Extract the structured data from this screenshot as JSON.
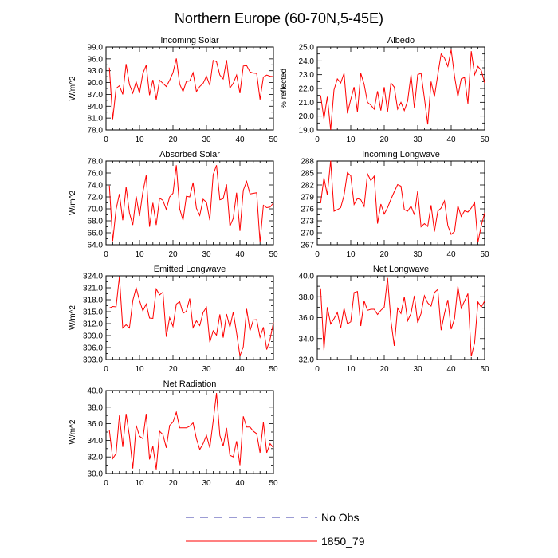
{
  "figure_title": "Northern Europe (60-70N,5-45E)",
  "colors": {
    "model": "#ff0000",
    "obs": "#3a3aa8",
    "axis": "#000000"
  },
  "legend": [
    {
      "label": "No Obs",
      "style": "dashed",
      "color": "#3a3aa8"
    },
    {
      "label": "1850_79",
      "style": "solid",
      "color": "#ff0000"
    }
  ],
  "chart_data": [
    {
      "type": "line",
      "title": "Incoming Solar",
      "ylabel": "W/m^2",
      "xlim": [
        0,
        50
      ],
      "ylim": [
        78,
        99
      ],
      "xticks": [
        0,
        10,
        20,
        30,
        40,
        50
      ],
      "yticks": [
        78,
        81,
        84,
        87,
        90,
        93,
        96,
        99
      ],
      "ytick_labels": [
        "78.0",
        "81.0",
        "84.0",
        "87.0",
        "90.0",
        "93.0",
        "96.0",
        "99.0"
      ],
      "series": [
        {
          "name": "1850_79",
          "x_start": 1,
          "values": [
            93.8,
            80.7,
            88.5,
            89.2,
            87.0,
            94.7,
            89.5,
            87.3,
            90.2,
            87.3,
            92.3,
            94.4,
            86.8,
            90.7,
            85.7,
            90.6,
            89.8,
            89.0,
            90.6,
            92.5,
            96.1,
            89.6,
            87.7,
            90.3,
            90.4,
            92.5,
            87.7,
            89.0,
            89.8,
            91.6,
            89.3,
            95.6,
            95.3,
            91.9,
            90.9,
            95.7,
            88.6,
            89.8,
            91.9,
            87.3,
            94.2,
            94.3,
            92.7,
            92.4,
            92.3,
            85.7,
            91.4,
            91.9,
            91.6,
            91.5
          ]
        }
      ]
    },
    {
      "type": "line",
      "title": "Albedo",
      "ylabel": "% reflected",
      "xlim": [
        0,
        50
      ],
      "ylim": [
        19,
        25
      ],
      "xticks": [
        0,
        10,
        20,
        30,
        40,
        50
      ],
      "yticks": [
        19,
        20,
        21,
        22,
        23,
        24,
        25
      ],
      "ytick_labels": [
        "19.0",
        "20.0",
        "21.0",
        "22.0",
        "23.0",
        "24.0",
        "25.0"
      ],
      "series": [
        {
          "name": "1850_79",
          "x_start": 1,
          "values": [
            21.5,
            19.8,
            21.4,
            19.0,
            21.9,
            22.7,
            22.4,
            23.1,
            20.2,
            21.2,
            22.1,
            20.3,
            23.1,
            22.3,
            21.0,
            20.8,
            20.5,
            21.8,
            20.4,
            22.1,
            20.3,
            22.4,
            22.1,
            20.5,
            21.0,
            20.4,
            21.1,
            23.0,
            20.6,
            23.0,
            23.1,
            21.3,
            19.4,
            22.5,
            21.4,
            23.0,
            24.5,
            24.2,
            23.6,
            24.8,
            22.9,
            21.4,
            22.7,
            22.8,
            20.9,
            24.7,
            23.0,
            23.6,
            23.3,
            22.4
          ]
        }
      ]
    },
    {
      "type": "line",
      "title": "Absorbed Solar",
      "ylabel": "W/m^2",
      "xlim": [
        0,
        50
      ],
      "ylim": [
        64,
        78
      ],
      "xticks": [
        0,
        10,
        20,
        30,
        40,
        50
      ],
      "yticks": [
        64,
        66,
        68,
        70,
        72,
        74,
        76,
        78
      ],
      "ytick_labels": [
        "64.0",
        "66.0",
        "68.0",
        "70.0",
        "72.0",
        "74.0",
        "76.0",
        "78.0"
      ],
      "series": [
        {
          "name": "1850_79",
          "x_start": 1,
          "values": [
            73.9,
            64.6,
            69.9,
            72.5,
            68.1,
            73.7,
            69.3,
            67.3,
            72.1,
            68.8,
            72.8,
            75.6,
            67.0,
            71.0,
            67.3,
            71.8,
            71.4,
            69.9,
            72.0,
            72.6,
            77.3,
            70.0,
            68.1,
            72.1,
            72.0,
            74.4,
            70.1,
            68.9,
            71.6,
            71.1,
            68.1,
            75.7,
            77.3,
            71.5,
            71.7,
            74.1,
            67.1,
            68.4,
            72.7,
            66.3,
            73.1,
            74.6,
            72.5,
            72.6,
            72.7,
            64.4,
            70.6,
            70.2,
            70.3,
            71.0
          ]
        }
      ]
    },
    {
      "type": "line",
      "title": "Incoming Longwave",
      "ylabel": "",
      "xlim": [
        0,
        50
      ],
      "ylim": [
        267,
        288
      ],
      "xticks": [
        0,
        10,
        20,
        30,
        40,
        50
      ],
      "yticks": [
        267,
        270,
        273,
        276,
        279,
        282,
        285,
        288
      ],
      "ytick_labels": [
        "267",
        "270",
        "273",
        "276",
        "279",
        "282",
        "285",
        "288"
      ],
      "series": [
        {
          "name": "1850_79",
          "x_start": 1,
          "values": [
            277.4,
            283.8,
            279.5,
            288.1,
            275.4,
            275.8,
            276.3,
            279.4,
            285.1,
            284.3,
            277.1,
            278.6,
            278.3,
            276.6,
            284.8,
            283.1,
            284.2,
            272.3,
            277.2,
            274.7,
            276.3,
            278.4,
            280.3,
            282.1,
            281.7,
            275.8,
            275.4,
            276.7,
            274.5,
            280.5,
            271.5,
            272.3,
            271.6,
            276.9,
            270.3,
            275.4,
            276.2,
            278.0,
            271.8,
            269.6,
            270.3,
            276.8,
            274.1,
            275.5,
            275.2,
            276.2,
            277.6,
            267.6,
            271.8,
            275.0
          ]
        }
      ]
    },
    {
      "type": "line",
      "title": "Emitted Longwave",
      "ylabel": "W/m^2",
      "xlim": [
        0,
        50
      ],
      "ylim": [
        303,
        324
      ],
      "xticks": [
        0,
        10,
        20,
        30,
        40,
        50
      ],
      "yticks": [
        303,
        306,
        309,
        312,
        315,
        318,
        321,
        324
      ],
      "ytick_labels": [
        "303.0",
        "306.0",
        "309.0",
        "312.0",
        "315.0",
        "318.0",
        "321.0",
        "324.0"
      ],
      "series": [
        {
          "name": "1850_79",
          "x_start": 1,
          "values": [
            315.9,
            316.3,
            316.2,
            323.8,
            310.9,
            311.7,
            310.9,
            317.8,
            321.0,
            317.8,
            315.2,
            316.9,
            313.4,
            313.3,
            320.7,
            319.2,
            319.9,
            308.7,
            313.5,
            311.3,
            316.9,
            317.5,
            314.6,
            315.1,
            318.3,
            311.0,
            312.7,
            311.5,
            314.8,
            316.1,
            307.3,
            310.2,
            309.1,
            314.3,
            308.5,
            314.4,
            311.1,
            314.9,
            309.7,
            303.9,
            306.2,
            315.7,
            310.2,
            312.9,
            313.0,
            308.6,
            311.1,
            305.5,
            308.1,
            312.3
          ]
        }
      ]
    },
    {
      "type": "line",
      "title": "Net Longwave",
      "ylabel": "",
      "xlim": [
        0,
        50
      ],
      "ylim": [
        32,
        40
      ],
      "xticks": [
        0,
        10,
        20,
        30,
        40,
        50
      ],
      "yticks": [
        32,
        34,
        36,
        38,
        40
      ],
      "ytick_labels": [
        "32.0",
        "34.0",
        "36.0",
        "38.0",
        "40.0"
      ],
      "series": [
        {
          "name": "1850_79",
          "x_start": 1,
          "values": [
            38.8,
            32.9,
            37.0,
            35.4,
            35.9,
            36.5,
            35.0,
            36.9,
            35.4,
            35.6,
            38.4,
            38.5,
            35.2,
            37.6,
            36.7,
            36.8,
            36.8,
            36.3,
            36.7,
            37.0,
            39.8,
            35.7,
            33.3,
            36.9,
            36.4,
            38.0,
            35.7,
            36.4,
            38.1,
            35.5,
            36.4,
            38.1,
            37.4,
            37.1,
            38.4,
            38.7,
            34.8,
            36.4,
            37.7,
            34.9,
            35.9,
            39.0,
            36.9,
            37.6,
            38.3,
            32.3,
            33.6,
            37.5,
            37.0,
            37.6
          ]
        }
      ]
    },
    {
      "type": "line",
      "title": "Net Radiation",
      "ylabel": "W/m^2",
      "xlim": [
        0,
        50
      ],
      "ylim": [
        30,
        40
      ],
      "xticks": [
        0,
        10,
        20,
        30,
        40,
        50
      ],
      "yticks": [
        30,
        32,
        34,
        36,
        38,
        40
      ],
      "ytick_labels": [
        "30.0",
        "32.0",
        "34.0",
        "36.0",
        "38.0",
        "40.0"
      ],
      "series": [
        {
          "name": "1850_79",
          "x_start": 1,
          "values": [
            35.2,
            31.8,
            32.4,
            37.0,
            33.2,
            37.2,
            34.5,
            30.6,
            35.8,
            34.5,
            34.2,
            37.2,
            31.7,
            33.3,
            30.5,
            35.1,
            34.7,
            33.1,
            35.8,
            36.2,
            37.4,
            35.5,
            35.5,
            35.5,
            35.7,
            36.1,
            34.2,
            32.9,
            33.6,
            34.6,
            33.1,
            36.3,
            39.7,
            34.6,
            33.3,
            35.5,
            32.2,
            32.0,
            33.9,
            31.0,
            36.9,
            35.6,
            35.6,
            35.1,
            34.8,
            32.5,
            36.2,
            32.5,
            33.6,
            33.1
          ]
        }
      ]
    }
  ]
}
